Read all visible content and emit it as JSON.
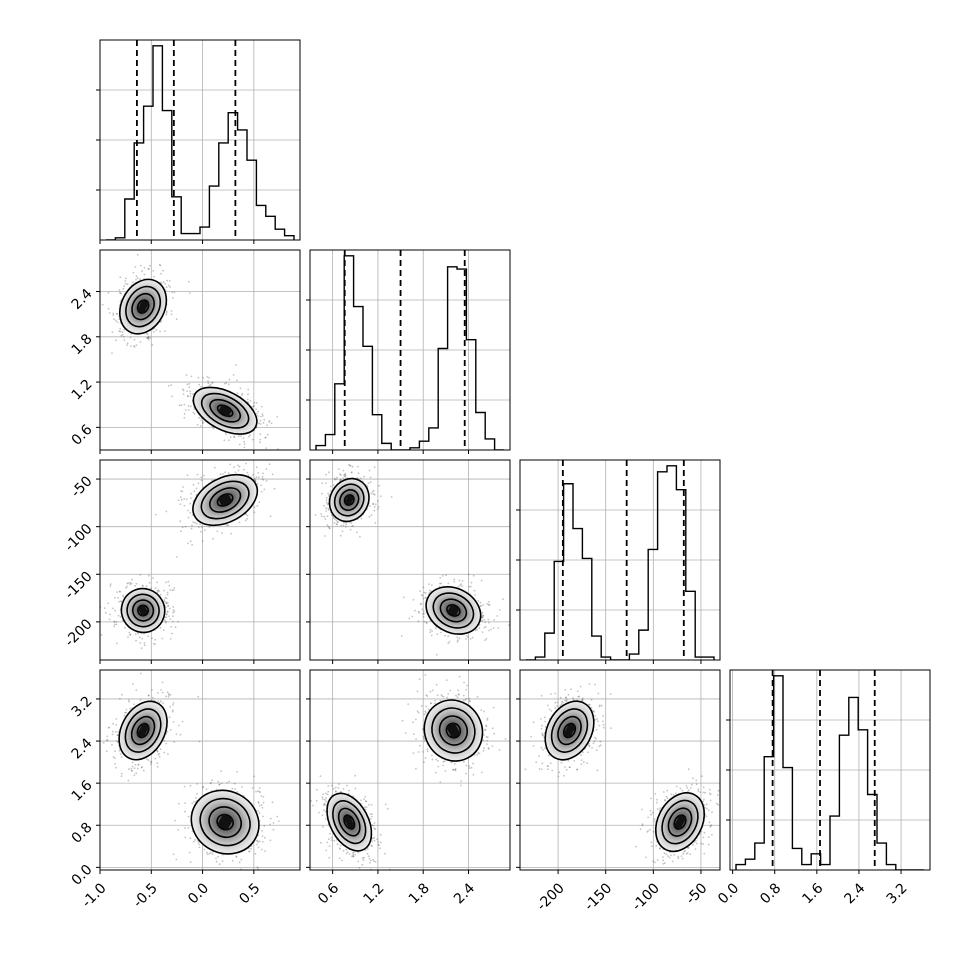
{
  "chart_data": {
    "type": "corner",
    "n_params": 4,
    "params": [
      {
        "range": [
          -1.0,
          0.95
        ],
        "ticks": [
          "-1.0",
          "-0.5",
          "0.0",
          "0.5"
        ],
        "tick_values": [
          -1.0,
          -0.5,
          0.0,
          0.5
        ],
        "quantiles": [
          -0.64,
          -0.28,
          0.32
        ]
      },
      {
        "range": [
          0.3,
          2.95
        ],
        "ticks": [
          "0.6",
          "1.2",
          "1.8",
          "2.4"
        ],
        "tick_values": [
          0.6,
          1.2,
          1.8,
          2.4
        ],
        "quantiles": [
          0.76,
          1.5,
          2.35
        ]
      },
      {
        "range": [
          -240,
          -30
        ],
        "ticks": [
          "-200",
          "-150",
          "-100",
          "-50"
        ],
        "tick_values": [
          -200,
          -150,
          -100,
          -50
        ],
        "quantiles": [
          -195,
          -128,
          -68
        ]
      },
      {
        "range": [
          -0.05,
          3.75
        ],
        "ticks": [
          "0.0",
          "0.8",
          "1.6",
          "2.4",
          "3.2"
        ],
        "tick_values": [
          0.0,
          0.8,
          1.6,
          2.4,
          3.2
        ],
        "quantiles": [
          0.76,
          1.66,
          2.7
        ]
      }
    ],
    "modes": [
      {
        "center": [
          -0.58,
          2.2,
          -188,
          2.6
        ],
        "sigma": [
          0.1,
          0.18,
          11,
          0.28
        ],
        "weight": 0.5
      },
      {
        "center": [
          0.22,
          0.82,
          -72,
          0.86
        ],
        "sigma": [
          0.16,
          0.12,
          11,
          0.28
        ],
        "weight": 0.5
      }
    ],
    "hist_counts": [
      [
        0,
        1,
        19,
        45,
        62,
        90,
        60,
        20,
        3,
        3,
        6,
        25,
        45,
        59,
        51,
        37,
        16,
        11,
        5,
        2
      ],
      [
        2,
        7,
        30,
        88,
        65,
        47,
        16,
        3,
        0,
        0,
        1,
        4,
        10,
        46,
        83,
        82,
        50,
        17,
        5,
        0
      ],
      [
        0,
        1,
        9,
        33,
        59,
        44,
        34,
        8,
        1,
        0,
        0,
        2,
        10,
        37,
        63,
        65,
        57,
        23,
        1,
        1
      ],
      [
        1,
        2,
        5,
        21,
        36,
        19,
        4,
        1,
        3,
        1,
        10,
        25,
        32,
        26,
        14,
        5,
        1,
        0,
        0,
        0
      ]
    ],
    "grid": true
  }
}
